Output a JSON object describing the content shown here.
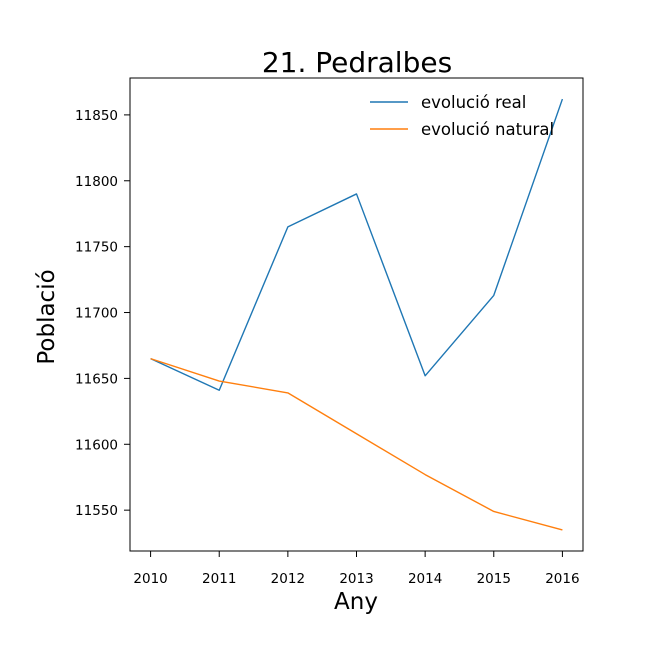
{
  "chart_data": {
    "type": "line",
    "title": "21. Pedralbes",
    "xlabel": "Any",
    "ylabel": "Població",
    "x": [
      2010,
      2011,
      2012,
      2013,
      2014,
      2015,
      2016
    ],
    "x_tick_labels": [
      "2010",
      "2011",
      "2012",
      "2013",
      "2014",
      "2015",
      "2016"
    ],
    "y_ticks": [
      11550,
      11600,
      11650,
      11700,
      11750,
      11800,
      11850
    ],
    "y_tick_labels": [
      "11550",
      "11600",
      "11650",
      "11700",
      "11750",
      "11800",
      "11850"
    ],
    "xlim": [
      2009.7,
      2016.3
    ],
    "ylim": [
      11519,
      11878
    ],
    "grid": false,
    "legend_position": "top-right",
    "series": [
      {
        "name": "evolució real",
        "color": "#1f77b4",
        "values": [
          11665,
          11641,
          11765,
          11790,
          11652,
          11713,
          11862
        ]
      },
      {
        "name": "evolució natural",
        "color": "#ff7f0e",
        "values": [
          11665,
          11648,
          11639,
          11608,
          11577,
          11549,
          11535
        ]
      }
    ]
  }
}
